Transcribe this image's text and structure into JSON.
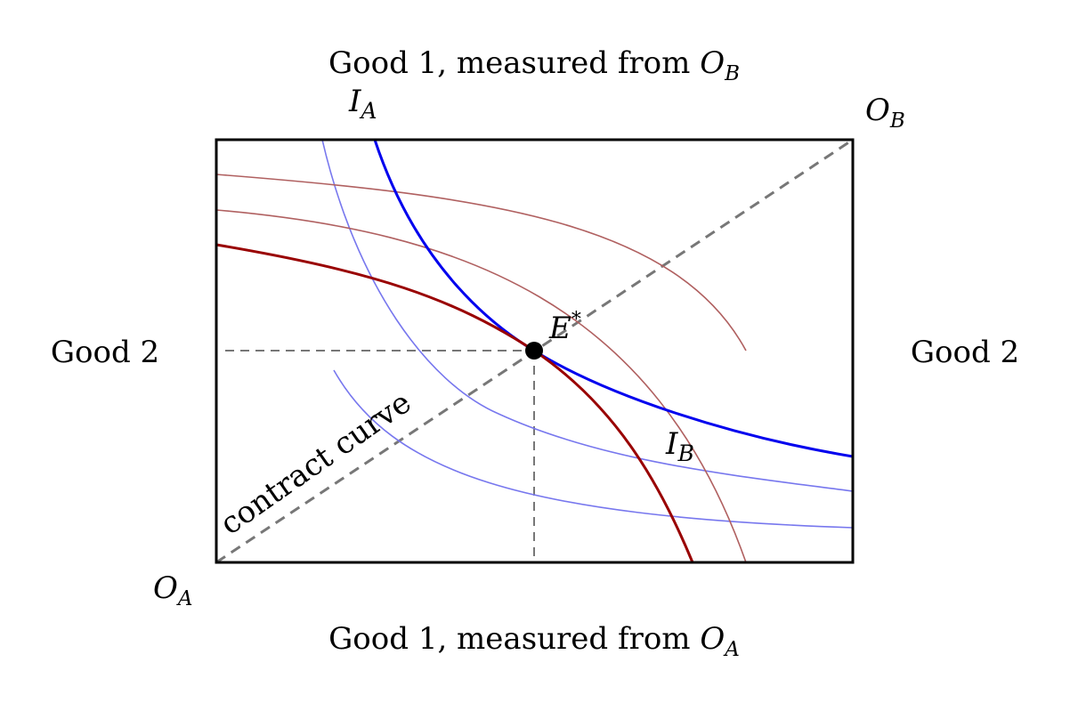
{
  "labels": {
    "top_axis_text": "Good 1, measured from ",
    "bottom_axis_text": "Good 1, measured from ",
    "left_axis": "Good 2",
    "right_axis": "Good 2",
    "origin_a": "O",
    "origin_a_sub": "A",
    "origin_b": "O",
    "origin_b_sub": "B",
    "ia": "I",
    "ia_sub": "A",
    "ib": "I",
    "ib_sub": "B",
    "equilibrium": "E",
    "equilibrium_sup": "*",
    "contract_curve": "contract curve"
  },
  "colors": {
    "box": "#000000",
    "indiff_a": "#0000ee",
    "indiff_a_light": "#7777ee",
    "indiff_b": "#990000",
    "indiff_b_light": "#b06060",
    "dashed": "#777777",
    "point": "#000000"
  }
}
